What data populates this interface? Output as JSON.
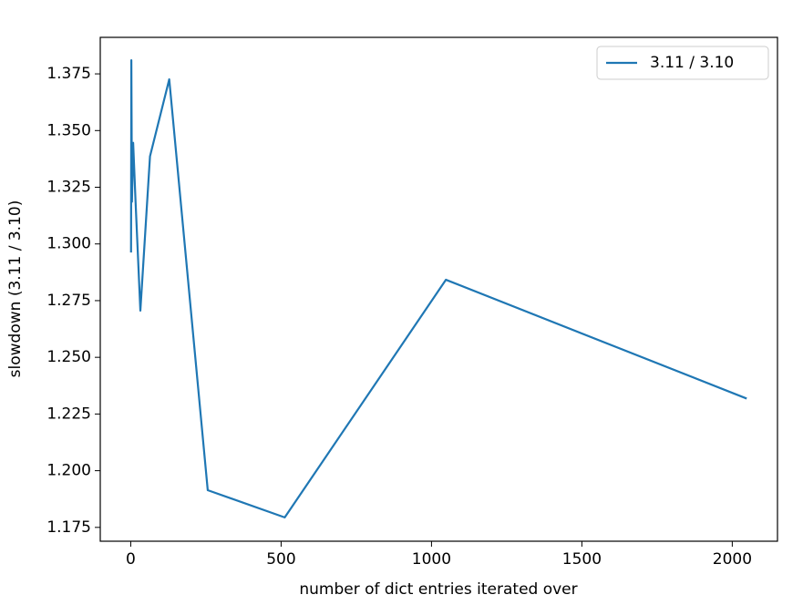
{
  "chart_data": {
    "type": "line",
    "xlabel": "number of dict entries iterated over",
    "ylabel": "slowdown (3.11 / 3.10)",
    "x": [
      1,
      2,
      4,
      8,
      16,
      32,
      64,
      128,
      256,
      512,
      1048,
      2048
    ],
    "series": [
      {
        "name": "3.11 / 3.10",
        "color": "#1f77b4",
        "values": [
          1.2962,
          1.381,
          1.3186,
          1.3446,
          1.3186,
          1.2706,
          1.3386,
          1.3726,
          1.1914,
          1.1794,
          1.2842,
          1.2318
        ]
      }
    ],
    "xlim": [
      -101.35,
      2150.35
    ],
    "ylim": [
      1.1689,
      1.3911
    ],
    "xticks": [
      0,
      500,
      1000,
      1500,
      2000
    ],
    "yticks": [
      1.175,
      {
        "value": 1.2,
        "label": "1.200"
      },
      1.225,
      {
        "value": 1.25,
        "label": "1.250"
      },
      1.275,
      {
        "value": 1.3,
        "label": "1.300"
      },
      1.325,
      {
        "value": 1.35,
        "label": "1.350"
      },
      1.375
    ],
    "legend": "upper right"
  }
}
